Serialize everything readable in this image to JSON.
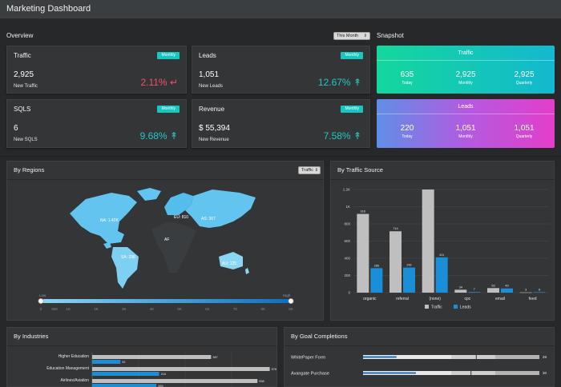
{
  "header": {
    "title": "Marketing Dashboard"
  },
  "overview": {
    "label": "Overview",
    "period_select": "This Month",
    "cards": [
      {
        "title": "Traffic",
        "badge": "Monthly",
        "value": "2,925",
        "sub": "New Traffic",
        "change": "2.11%",
        "direction": "down",
        "color": "#f2506a"
      },
      {
        "title": "Leads",
        "badge": "Monthly",
        "value": "1,051",
        "sub": "New Leads",
        "change": "12.67%",
        "direction": "up",
        "color": "#23c9c0"
      },
      {
        "title": "SQLS",
        "badge": "Monthly",
        "value": "6",
        "sub": "New SQLS",
        "change": "9.68%",
        "direction": "up",
        "color": "#23c9c0"
      },
      {
        "title": "Revenue",
        "badge": "Monthly",
        "value": "$ 55,394",
        "sub": "New Revenue",
        "change": "7.58%",
        "direction": "up",
        "color": "#23c9c0"
      }
    ]
  },
  "snapshot": {
    "label": "Snapshot",
    "panels": [
      {
        "title": "Traffic",
        "cols": [
          {
            "value": "635",
            "label": "Today"
          },
          {
            "value": "2,925",
            "label": "Monthly"
          },
          {
            "value": "2,925",
            "label": "Quarterly"
          }
        ]
      },
      {
        "title": "Leads",
        "cols": [
          {
            "value": "220",
            "label": "Today"
          },
          {
            "value": "1,051",
            "label": "Monthly"
          },
          {
            "value": "1,051",
            "label": "Quarterly"
          }
        ]
      }
    ]
  },
  "regions": {
    "title": "By Regions",
    "select": "Traffic",
    "labels": {
      "na": "NA: 1.42K",
      "eu": "EU: 810",
      "as": "AS: 367",
      "sa": "SA: 298",
      "af": "AF",
      "au": "AU: 125"
    },
    "legend": {
      "low": "Low",
      "high": "High",
      "ticks": [
        "0",
        "500",
        "1K",
        "2K",
        "3K",
        "4K",
        "5K",
        "6K",
        "7K",
        "8K",
        "9K"
      ]
    }
  },
  "traffic_source": {
    "title": "By Traffic Source",
    "chart_data": {
      "type": "bar",
      "categories": [
        "organic",
        "referral",
        "(none)",
        "cpc",
        "email",
        "feed"
      ],
      "series": [
        {
          "name": "Traffic",
          "values": [
            916,
            714,
            1200,
            34,
            53,
            3
          ],
          "labels": [
            "916",
            "714",
            "",
            "34",
            "53",
            "3"
          ],
          "color": "#bfbfbf"
        },
        {
          "name": "Leads",
          "values": [
            285,
            292,
            411,
            7,
            49,
            6
          ],
          "labels": [
            "285",
            "292",
            "411",
            "7",
            "49",
            "6"
          ],
          "color": "#1a8fd8"
        }
      ],
      "yticks": [
        "0",
        "200",
        "400",
        "600",
        "800",
        "1K",
        "1.2K"
      ],
      "ylim": [
        0,
        1200
      ]
    }
  },
  "industries": {
    "title": "By Industries",
    "rows": [
      {
        "label": "Higher Education",
        "gray": 387,
        "gray_label": "387",
        "blue": 92,
        "blue_label": "92"
      },
      {
        "label": "Education Management",
        "gray": 578,
        "gray_label": "578",
        "blue": 218,
        "blue_label": "218"
      },
      {
        "label": "Airlines/Aviation",
        "gray": 538,
        "gray_label": "538",
        "blue": 209,
        "blue_label": "209"
      }
    ],
    "max": 600
  },
  "goals": {
    "title": "By Goal Completions",
    "rows": [
      {
        "label": "WhitePaper Form",
        "value": 28,
        "value_label": "28",
        "progress": 0.19,
        "marker": 0.64
      },
      {
        "label": "Avangate Purchase",
        "value": 30,
        "value_label": "30",
        "progress": 0.3,
        "marker": 0.61
      }
    ]
  }
}
